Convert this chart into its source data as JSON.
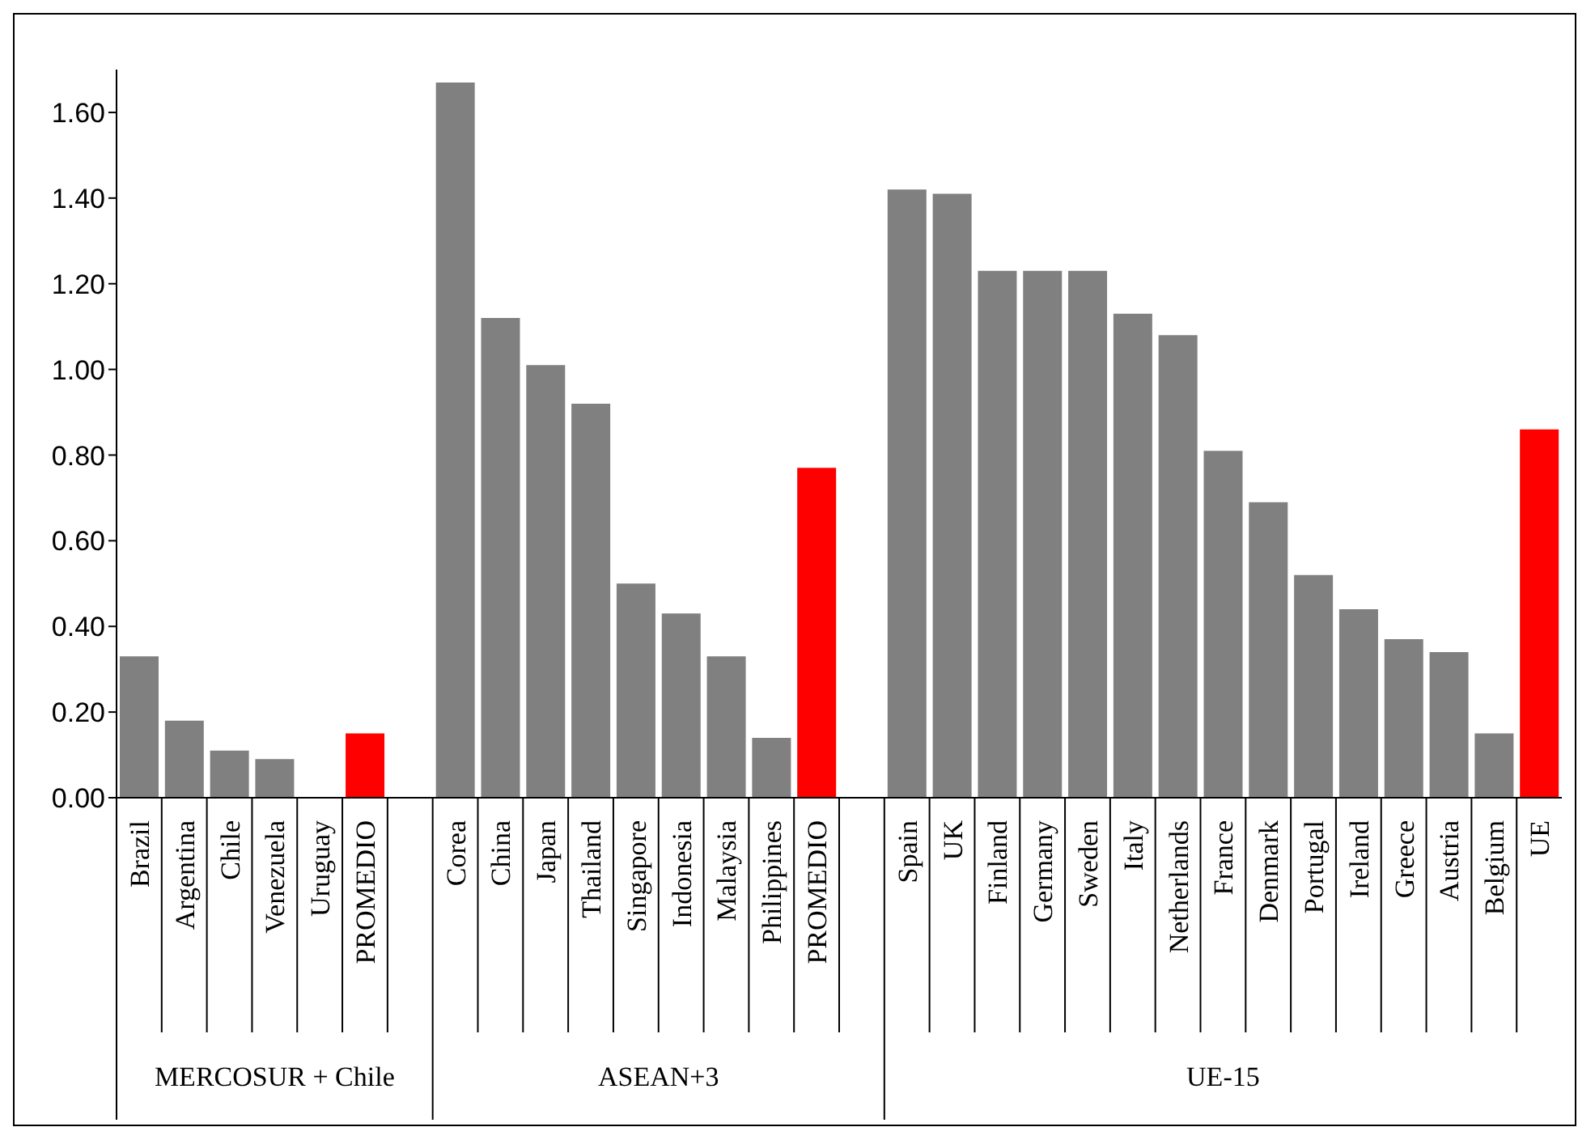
{
  "chart_data": {
    "type": "bar",
    "categories": [
      "Brazil",
      "Argentina",
      "Chile",
      "Venezuela",
      "Uruguay",
      "PROMEDIO",
      null,
      "Corea",
      "China",
      "Japan",
      "Thailand",
      "Singapore",
      "Indonesia",
      "Malaysia",
      "Philippines",
      "PROMEDIO",
      null,
      "Spain",
      "UK",
      "Finland",
      "Germany",
      "Sweden",
      "Italy",
      "Netherlands",
      "France",
      "Denmark",
      "Portugal",
      "Ireland",
      "Greece",
      "Austria",
      "Belgium",
      "UE"
    ],
    "values": [
      0.33,
      0.18,
      0.11,
      0.09,
      0,
      0.15,
      null,
      1.67,
      1.12,
      1.01,
      0.92,
      0.5,
      0.43,
      0.33,
      0.14,
      0.77,
      null,
      1.42,
      1.41,
      1.23,
      1.23,
      1.23,
      1.13,
      1.08,
      0.81,
      0.69,
      0.52,
      0.44,
      0.37,
      0.34,
      0.15,
      0.86
    ],
    "colors": [
      "#808080",
      "#808080",
      "#808080",
      "#808080",
      "#808080",
      "#ff0000",
      null,
      "#808080",
      "#808080",
      "#808080",
      "#808080",
      "#808080",
      "#808080",
      "#808080",
      "#808080",
      "#ff0000",
      null,
      "#808080",
      "#808080",
      "#808080",
      "#808080",
      "#808080",
      "#808080",
      "#808080",
      "#808080",
      "#808080",
      "#808080",
      "#808080",
      "#808080",
      "#808080",
      "#808080",
      "#ff0000"
    ],
    "ylim": [
      0,
      1.7
    ],
    "yticks": [
      {
        "value": 0,
        "label": "0.00"
      },
      {
        "value": 0.2,
        "label": "0.20"
      },
      {
        "value": 0.4,
        "label": "0.40"
      },
      {
        "value": 0.6,
        "label": "0.60"
      },
      {
        "value": 0.8,
        "label": "0.80"
      },
      {
        "value": 1,
        "label": "1.00"
      },
      {
        "value": 1.2,
        "label": "1.20"
      },
      {
        "value": 1.4,
        "label": "1.40"
      },
      {
        "value": 1.6,
        "label": "1.60"
      }
    ],
    "annotations": [
      "MERCOSUR + Chile",
      "ASEAN+3",
      "UE-15"
    ]
  }
}
